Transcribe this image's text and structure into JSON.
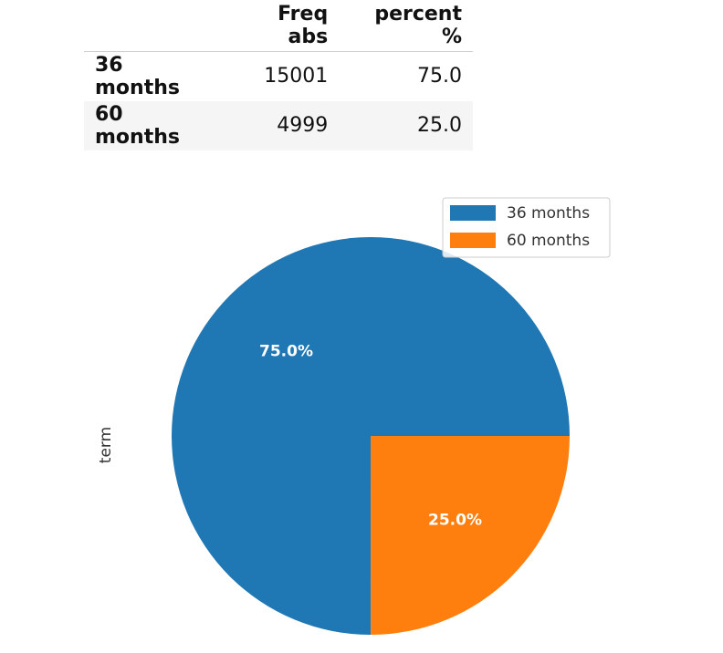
{
  "table": {
    "columns": [
      "",
      "Freq abs",
      "percent %"
    ],
    "rows": [
      {
        "label": "36 months",
        "freq_abs": "15001",
        "percent": "75.0"
      },
      {
        "label": "60 months",
        "freq_abs": "4999",
        "percent": "25.0"
      }
    ]
  },
  "chart_data": {
    "type": "pie",
    "ylabel": "term",
    "categories": [
      "36 months",
      "60 months"
    ],
    "values": [
      15001,
      4999
    ],
    "labels": [
      "75.0%",
      "25.0%"
    ],
    "colors": [
      "#1f77b4",
      "#ff7f0e"
    ],
    "legend_position": "top-right"
  }
}
